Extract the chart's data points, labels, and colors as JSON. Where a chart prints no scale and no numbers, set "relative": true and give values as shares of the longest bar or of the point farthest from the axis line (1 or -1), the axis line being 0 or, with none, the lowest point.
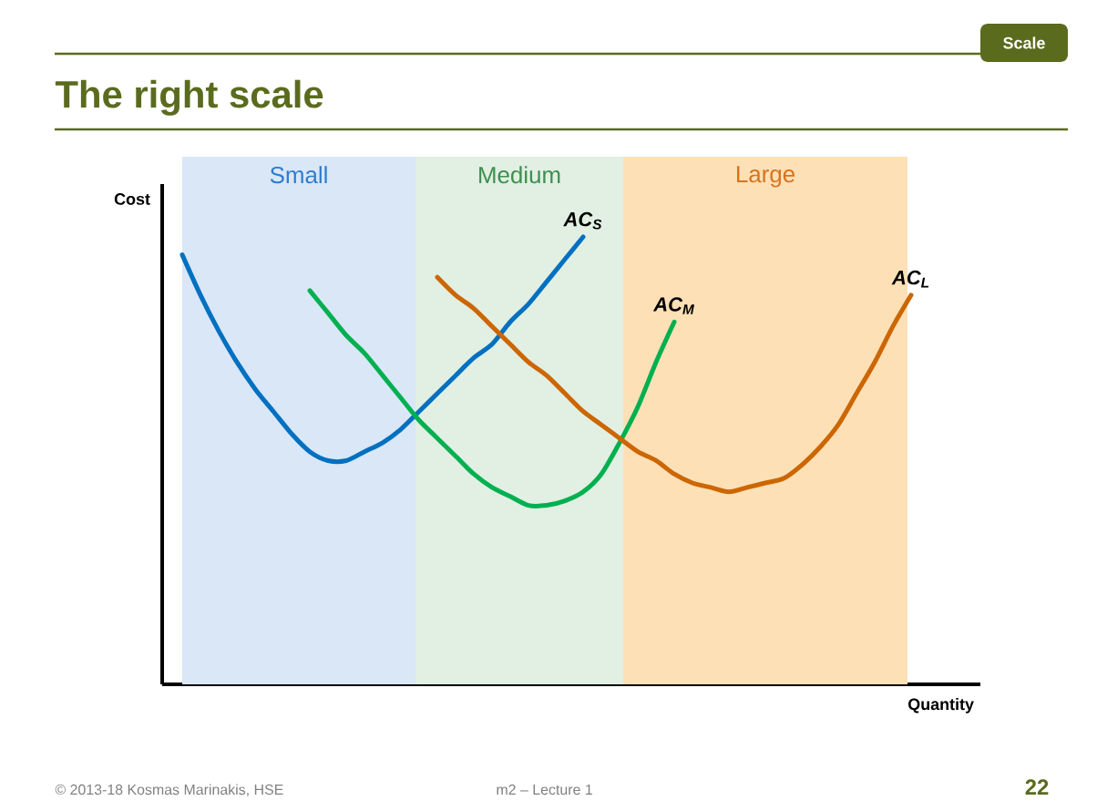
{
  "chart_data": {
    "type": "line",
    "title": "The right scale",
    "xlabel": "Quantity",
    "ylabel": "Cost",
    "relative": true,
    "categories": [
      null,
      null,
      null,
      null,
      null,
      null,
      null,
      null,
      null,
      null,
      null,
      null,
      null,
      null,
      null,
      null,
      null,
      null,
      null,
      null,
      null,
      null,
      null,
      null,
      null,
      null,
      null,
      null,
      null,
      null,
      null,
      null,
      null,
      null,
      null,
      null,
      null,
      null,
      null,
      null,
      null
    ],
    "series": [
      {
        "name": "AC$_{S}$",
        "color": "#0070c0",
        "values": [
          0.96,
          0.87,
          0.79,
          0.72,
          0.66,
          0.61,
          0.56,
          0.52,
          0.5,
          0.5,
          0.52,
          0.54,
          0.57,
          0.61,
          0.65,
          0.69,
          0.73,
          0.76,
          0.81,
          0.85,
          0.9,
          0.95,
          1.0,
          null,
          null,
          null,
          null,
          null,
          null,
          null,
          null,
          null,
          null,
          null,
          null,
          null,
          null,
          null,
          null,
          null,
          null
        ]
      },
      {
        "name": "AC$_{M}$",
        "color": "#00b050",
        "values": [
          null,
          null,
          null,
          null,
          null,
          null,
          null,
          0.88,
          0.83,
          0.78,
          0.74,
          0.69,
          0.64,
          0.59,
          0.55,
          0.51,
          0.47,
          0.44,
          0.42,
          0.4,
          0.4,
          0.41,
          0.43,
          0.47,
          0.54,
          0.62,
          0.72,
          0.81,
          null,
          null,
          null,
          null,
          null,
          null,
          null,
          null,
          null,
          null,
          null,
          null,
          null
        ]
      },
      {
        "name": "AC$_{L}$",
        "color": "#cc6600",
        "values": [
          null,
          null,
          null,
          null,
          null,
          null,
          null,
          null,
          null,
          null,
          null,
          null,
          null,
          null,
          0.91,
          0.87,
          0.84,
          0.8,
          0.76,
          0.72,
          0.69,
          0.65,
          0.61,
          0.58,
          0.55,
          0.52,
          0.5,
          0.47,
          0.45,
          0.44,
          0.43,
          0.44,
          0.45,
          0.46,
          0.49,
          0.53,
          0.58,
          0.65,
          0.72,
          0.8,
          0.87
        ]
      }
    ],
    "annotations": [
      "Scale",
      "© 2013-18 Kosmas Marinakis, HSE",
      "m2 – Lecture 1",
      "22",
      "Small",
      "Medium",
      "Large"
    ]
  }
}
